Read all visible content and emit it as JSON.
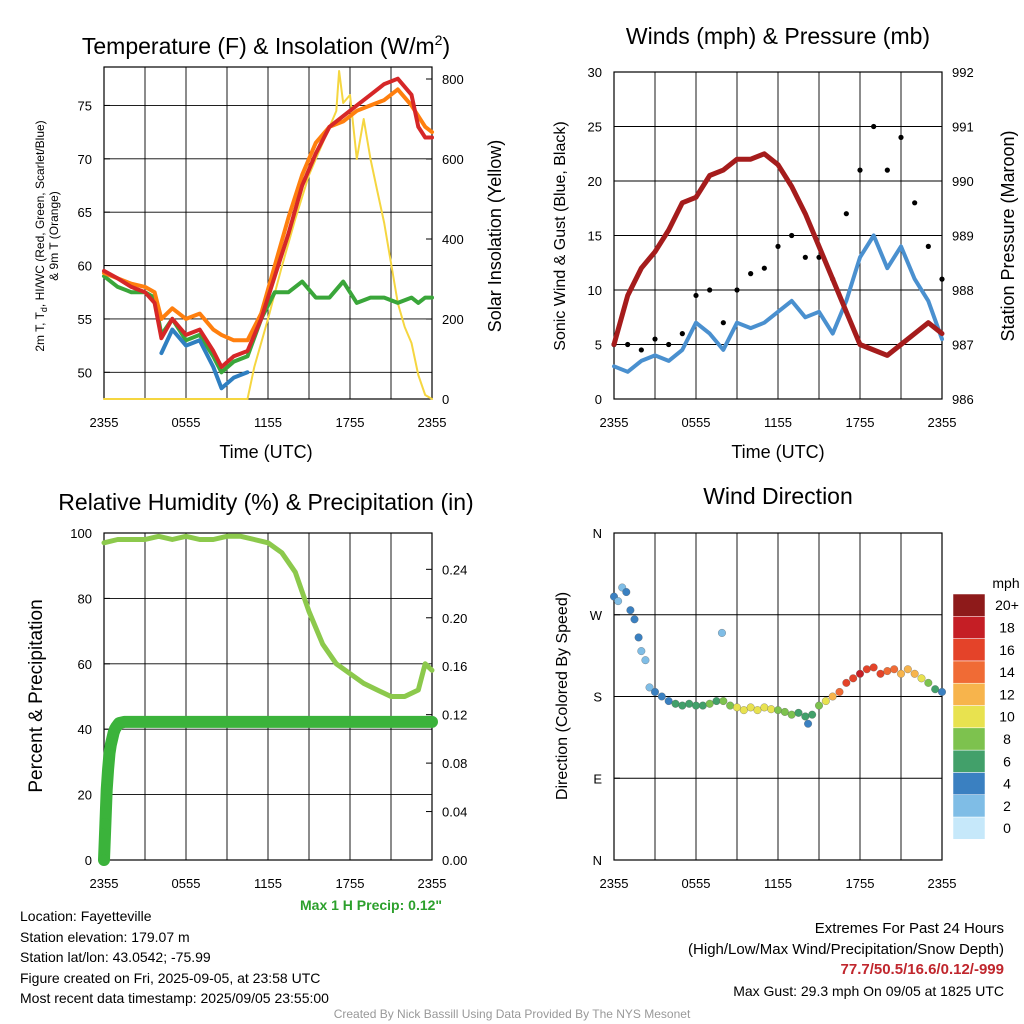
{
  "chart_data": [
    {
      "type": "line",
      "title": "Temperature (F) & Insolation (W/m²)",
      "xlabel": "Time (UTC)",
      "ylabel": "2m T, Td, HI/WC (Red, Green, Scarlet/Blue) & 9m T (Orange)",
      "y2label": "Solar Insolation (Yellow)",
      "x_ticks": [
        "2355",
        "0555",
        "1155",
        "1755",
        "2355"
      ],
      "y_ticks": [
        50,
        55,
        60,
        65,
        70,
        75
      ],
      "y2_ticks": [
        0,
        200,
        400,
        600,
        800
      ],
      "ylim": [
        47.5,
        78.6
      ],
      "y2lim": [
        0,
        830
      ],
      "xlim_hours": [
        0,
        24
      ],
      "series": [
        {
          "name": "Red",
          "color": "#d62728",
          "axis": "left",
          "x": [
            0,
            1,
            2,
            3,
            3.7,
            4.2,
            5,
            6,
            7,
            8,
            8.6,
            9.5,
            10.5,
            11.5,
            12.5,
            13.5,
            14.5,
            15.5,
            16.5,
            17.5,
            18.5,
            19.5,
            20.5,
            21.5,
            22.5,
            23,
            23.5,
            24
          ],
          "y": [
            59.5,
            58.8,
            58,
            57.5,
            56.5,
            53.2,
            55,
            53.5,
            54,
            52,
            50.5,
            51.5,
            52,
            55,
            59,
            63,
            67.5,
            70.5,
            73,
            74,
            75,
            76,
            77,
            77.5,
            76,
            73,
            72,
            72
          ]
        },
        {
          "name": "Orange",
          "color": "#ff7f0e",
          "axis": "left",
          "x": [
            0,
            1,
            2,
            3,
            3.7,
            4.2,
            5,
            6,
            7,
            8,
            8.6,
            9.5,
            10.5,
            11.5,
            12.5,
            13.5,
            14.5,
            15.5,
            16.5,
            17.5,
            18.5,
            19.5,
            20.5,
            21.5,
            22.5,
            23,
            23.5,
            24
          ],
          "y": [
            59.3,
            58.8,
            58.3,
            58,
            57.5,
            55,
            56,
            55,
            55.5,
            54,
            53.5,
            53,
            53,
            55.5,
            60,
            64.5,
            68.5,
            71.5,
            73,
            73.5,
            74.5,
            75,
            75.5,
            76.5,
            75,
            74,
            73,
            72.5
          ]
        },
        {
          "name": "Blue",
          "color": "#2f7fc1",
          "axis": "left",
          "x": [
            0,
            1,
            2,
            3,
            3.7,
            4.2,
            5,
            6,
            7,
            8,
            8.6,
            9.5,
            10.5,
            11.5,
            12.5,
            13.5,
            14.5,
            15.5,
            16.5,
            17.5,
            18.5,
            19.5,
            20.5,
            21.5,
            22.5,
            23,
            23.5,
            24
          ],
          "y": [
            null,
            null,
            null,
            null,
            null,
            51.8,
            54,
            52.5,
            53,
            50.5,
            48.5,
            49.5,
            50,
            null,
            null,
            null,
            null,
            null,
            null,
            null,
            null,
            null,
            null,
            null,
            null,
            null,
            null,
            null
          ]
        },
        {
          "name": "Green",
          "color": "#3aa63a",
          "axis": "left",
          "x": [
            0,
            1,
            2,
            3,
            3.7,
            4.2,
            5,
            6,
            7,
            8,
            8.6,
            9.5,
            10.5,
            11.5,
            12.5,
            13.5,
            14.5,
            15.5,
            16.5,
            17.5,
            18.5,
            19.5,
            20.5,
            21.5,
            22.5,
            23,
            23.5,
            24
          ],
          "y": [
            59,
            58,
            57.5,
            57.5,
            57,
            53.5,
            55,
            53,
            53.5,
            51.5,
            50,
            51,
            51.5,
            55,
            57.5,
            57.5,
            58.5,
            57,
            57,
            58.5,
            56.5,
            57,
            57,
            56.5,
            57,
            56.5,
            57,
            57
          ]
        },
        {
          "name": "Yellow",
          "color": "#f5d640",
          "axis": "right",
          "x": [
            0,
            10.5,
            11,
            12,
            13,
            14,
            15,
            15.5,
            16,
            16.5,
            17,
            17.2,
            17.5,
            18,
            18.5,
            19,
            19.5,
            20,
            20.5,
            21,
            21.5,
            22,
            22.5,
            23,
            23.5,
            24
          ],
          "y": [
            0,
            0,
            80,
            200,
            330,
            450,
            560,
            600,
            640,
            680,
            720,
            820,
            740,
            760,
            600,
            700,
            600,
            520,
            440,
            340,
            240,
            180,
            140,
            60,
            10,
            0
          ]
        }
      ]
    },
    {
      "type": "line",
      "title": "Winds (mph) & Pressure (mb)",
      "xlabel": "Time (UTC)",
      "ylabel": "Sonic Wind & Gust (Blue, Black)",
      "y2label": "Station Pressure (Maroon)",
      "x_ticks": [
        "2355",
        "0555",
        "1155",
        "1755",
        "2355"
      ],
      "y_ticks": [
        0,
        5,
        10,
        15,
        20,
        25,
        30
      ],
      "y2_ticks": [
        986,
        987,
        988,
        989,
        990,
        991,
        992
      ],
      "ylim": [
        0,
        30
      ],
      "y2lim": [
        986,
        992
      ],
      "series": [
        {
          "name": "Blue",
          "color": "#4a90cf",
          "axis": "left",
          "x": [
            0,
            1,
            2,
            3,
            4,
            5,
            6,
            7,
            8,
            9,
            10,
            11,
            12,
            13,
            14,
            15,
            16,
            17,
            18,
            19,
            20,
            21,
            22,
            23,
            24
          ],
          "y": [
            3,
            2.5,
            3.5,
            4,
            3.5,
            4.5,
            7,
            6,
            4.5,
            7,
            6.5,
            7,
            8,
            9,
            7.5,
            8,
            6,
            9,
            13,
            15,
            12,
            14,
            11,
            9,
            5.5
          ]
        },
        {
          "name": "Black",
          "color": "#000000",
          "axis": "left",
          "x": [
            0,
            1,
            2,
            3,
            4,
            5,
            6,
            7,
            8,
            9,
            10,
            11,
            12,
            13,
            14,
            15,
            16,
            17,
            18,
            19,
            20,
            21,
            22,
            23,
            24
          ],
          "y": [
            5,
            5,
            4.5,
            5.5,
            5,
            6,
            9.5,
            10,
            7,
            10,
            11.5,
            12,
            14,
            15,
            13,
            13,
            11,
            17,
            21,
            25,
            21,
            24,
            18,
            14,
            11
          ]
        },
        {
          "name": "Maroon",
          "color": "#a51c1c",
          "axis": "right",
          "x": [
            0,
            1,
            2,
            3,
            4,
            5,
            6,
            7,
            8,
            9,
            10,
            11,
            12,
            13,
            14,
            15,
            16,
            17,
            18,
            19,
            20,
            21,
            22,
            23,
            24
          ],
          "y": [
            987,
            987.9,
            988.4,
            988.7,
            989.1,
            989.6,
            989.7,
            990.1,
            990.2,
            990.4,
            990.4,
            990.5,
            990.3,
            989.9,
            989.4,
            988.8,
            988.2,
            987.6,
            987.0,
            986.9,
            986.8,
            987.0,
            987.2,
            987.4,
            987.2
          ]
        }
      ]
    },
    {
      "type": "line",
      "title": "Relative Humidity (%) & Precipitation (in)",
      "ylabel": "Percent & Precipitation",
      "x_ticks": [
        "2355",
        "0555",
        "1155",
        "1755",
        "2355"
      ],
      "y_ticks": [
        0,
        20,
        40,
        60,
        80,
        100
      ],
      "y2_ticks": [
        "0.00",
        "0.04",
        "0.08",
        "0.12",
        "0.16",
        "0.20",
        "0.24"
      ],
      "ylim": [
        0,
        100
      ],
      "y2lim": [
        0,
        0.27
      ],
      "series": [
        {
          "name": "RH",
          "color": "#8cc94c",
          "axis": "left",
          "x": [
            0,
            1,
            2,
            3,
            4,
            5,
            6,
            7,
            8,
            9,
            10,
            11,
            12,
            13,
            14,
            15,
            16,
            17,
            18,
            19,
            20,
            21,
            22,
            23,
            23.5,
            24
          ],
          "y": [
            97,
            98,
            98,
            98,
            99,
            98,
            99,
            98,
            98,
            99,
            99,
            98,
            97,
            94,
            88,
            76,
            66,
            60,
            57,
            54,
            52,
            50,
            50,
            52,
            60,
            58
          ]
        },
        {
          "name": "Precip",
          "color": "#3bb33b",
          "axis": "right",
          "x": [
            0,
            0.1,
            0.2,
            0.3,
            0.4,
            0.5,
            0.6,
            0.7,
            0.8,
            0.9,
            1.1,
            1.5,
            24
          ],
          "y": [
            0,
            0.03,
            0.058,
            0.075,
            0.088,
            0.095,
            0.1,
            0.105,
            0.108,
            0.11,
            0.113,
            0.114,
            0.114
          ]
        }
      ]
    },
    {
      "type": "scatter",
      "title": "Wind Direction",
      "ylabel": "Direction (Colored By Speed)",
      "x_ticks": [
        "2355",
        "0555",
        "1155",
        "1755",
        "2355"
      ],
      "y_ticks": [
        "N",
        "E",
        "S",
        "W",
        "N"
      ],
      "colorbar_title": "mph",
      "colorbar_labels": [
        "0",
        "2",
        "4",
        "6",
        "8",
        "10",
        "12",
        "14",
        "16",
        "18",
        "20+"
      ],
      "colorbar_colors": [
        "#c6e8fa",
        "#7fbde6",
        "#3a80c1",
        "#42a06a",
        "#7dc24e",
        "#e8e24f",
        "#f7b44c",
        "#f06b35",
        "#e44329",
        "#c51e25",
        "#8e1a1a"
      ],
      "series": [
        {
          "name": "direction",
          "x": [
            0,
            0.3,
            0.6,
            0.9,
            1.2,
            1.5,
            1.8,
            2,
            2.3,
            2.6,
            3,
            3.5,
            4,
            4.5,
            5,
            5.5,
            6,
            6.5,
            7,
            7.5,
            7.9,
            8,
            8.5,
            9,
            9.5,
            10,
            10.5,
            11,
            11.5,
            12,
            12.5,
            13,
            13.5,
            14,
            14.2,
            14.5,
            15,
            15.5,
            16,
            16.5,
            17,
            17.5,
            18,
            18.5,
            19,
            19.5,
            20,
            20.5,
            21,
            21.5,
            22,
            22.5,
            23,
            23.5,
            24
          ],
          "y": [
            290,
            285,
            300,
            295,
            275,
            265,
            245,
            230,
            220,
            190,
            185,
            180,
            175,
            172,
            170,
            172,
            170,
            170,
            172,
            175,
            250,
            175,
            170,
            168,
            165,
            168,
            165,
            168,
            166,
            165,
            163,
            160,
            162,
            158,
            150,
            160,
            170,
            175,
            180,
            185,
            195,
            200,
            205,
            210,
            212,
            205,
            208,
            210,
            205,
            210,
            205,
            200,
            195,
            188,
            185
          ],
          "speed": [
            3,
            2,
            2,
            3,
            3,
            3,
            3,
            2,
            2,
            2,
            3,
            4,
            4,
            5,
            5,
            6,
            6,
            6,
            7,
            6,
            2,
            7,
            8,
            9,
            9,
            10,
            10,
            9,
            9,
            8,
            8,
            7,
            6,
            5,
            4,
            5,
            8,
            10,
            12,
            14,
            15,
            16,
            17,
            16,
            16,
            15,
            14,
            13,
            12,
            12,
            11,
            10,
            8,
            6,
            4
          ]
        }
      ]
    }
  ],
  "labels": {
    "temp_title": "Temperature (F) & Insolation (W/m",
    "temp_title_sup": "2",
    "temp_title_end": ")",
    "temp_ylabel_a": "2m T, T",
    "temp_ylabel_sub": "d",
    "temp_ylabel_b": ", HI/WC (Red, Green, Scarlet/Blue)",
    "temp_ylabel_c": "& 9m T (Orange)",
    "temp_y2label": "Solar Insolation (Yellow)",
    "time_label": "Time (UTC)",
    "wind_title": "Winds (mph) & Pressure (mb)",
    "wind_ylabel": "Sonic Wind & Gust (Blue, Black)",
    "wind_y2label": "Station Pressure (Maroon)",
    "rh_title": "Relative Humidity (%) & Precipitation (in)",
    "rh_ylabel": "Percent & Precipitation",
    "dir_title": "Wind Direction",
    "dir_ylabel": "Direction (Colored By Speed)",
    "cb_title": "mph"
  },
  "footer": {
    "location": "Location: Fayetteville",
    "elevation": "Station elevation: 179.07 m",
    "latlon": "Station lat/lon: 43.0542; -75.99",
    "created": "Figure created on Fri, 2025-09-05, at 23:58 UTC",
    "recent": "Most recent data timestamp: 2025/09/05 23:55:00",
    "max_precip": "Max 1 H Precip: 0.12\"",
    "extremes_title": "Extremes For Past 24 Hours",
    "extremes_sub": "(High/Low/Max Wind/Precipitation/Snow Depth)",
    "extremes_values": "77.7/50.5/16.6/0.12/-999",
    "max_gust": "Max Gust: 29.3 mph On 09/05 at 1825 UTC",
    "credit": "Created By Nick Bassill Using Data Provided By The NYS Mesonet"
  }
}
